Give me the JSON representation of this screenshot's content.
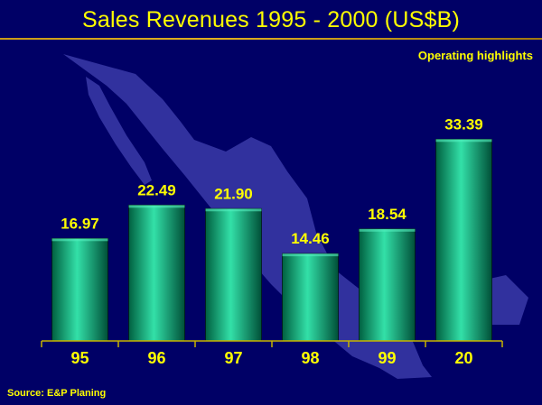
{
  "title": "Sales Revenues 1995 - 2000 (US$B)",
  "subtitle": "Operating highlights",
  "source": "Source: E&P Planing",
  "colors": {
    "background": "#000066",
    "text": "#ffff00",
    "bar_light": "#33e0a8",
    "bar_dark": "#006040",
    "map": "#3a3aa8",
    "axis": "#c8b400"
  },
  "chart_data": {
    "type": "bar",
    "title": "Sales Revenues 1995 - 2000 (US$B)",
    "categories": [
      "95",
      "96",
      "97",
      "98",
      "99",
      "20"
    ],
    "values": [
      16.97,
      22.49,
      21.9,
      14.46,
      18.54,
      33.39
    ],
    "value_labels": [
      "16.97",
      "22.49",
      "21.90",
      "14.46",
      "18.54",
      "33.39"
    ],
    "xlabel": "",
    "ylabel": "",
    "grid": false,
    "legend": "none"
  }
}
